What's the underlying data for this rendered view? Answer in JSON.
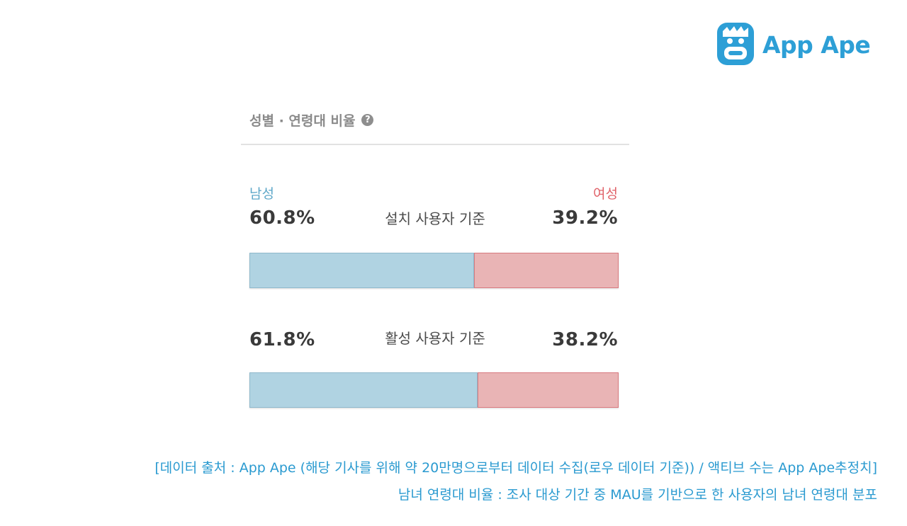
{
  "brand": {
    "name": "App Ape",
    "color": "#2d9fd6"
  },
  "panel": {
    "title": "성별 · 연령대 비율",
    "help_icon": "question-circle-icon"
  },
  "chart_data": {
    "type": "bar",
    "orientation": "horizontal-stacked-100",
    "categories": [
      "설치 사용자 기준",
      "활성 사용자 기준"
    ],
    "series": [
      {
        "name": "남성",
        "color": "#b0d3e2",
        "values": [
          60.8,
          61.8
        ],
        "labels": [
          "60.8%",
          "61.8%"
        ]
      },
      {
        "name": "여성",
        "color": "#e9b4b5",
        "values": [
          39.2,
          38.2
        ],
        "labels": [
          "39.2%",
          "38.2%"
        ]
      }
    ],
    "legend_colors": {
      "male": "#5fa8c9",
      "female": "#e0636a"
    },
    "xlim": [
      0,
      100
    ]
  },
  "captions": [
    "[데이터 출처 : App Ape (해당 기사를 위해 약 20만명으로부터 데이터 수집(로우 데이터 기준)) / 액티브 수는 App Ape추정치]",
    "남녀 연령대 비율 : 조사 대상 기간 중 MAU를 기반으로 한 사용자의 남녀 연령대 분포"
  ]
}
